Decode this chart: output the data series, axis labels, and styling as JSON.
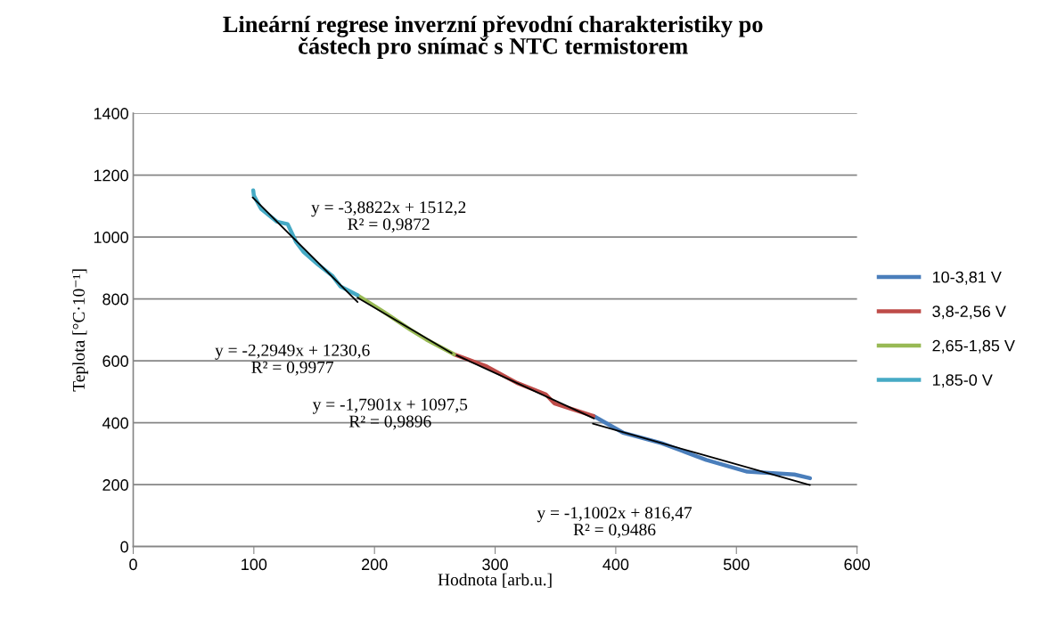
{
  "chart_data": {
    "type": "line",
    "title": "Lineární regrese inverzní převodní charakteristiky po částech pro snímač s NTC termistorem",
    "xlabel": "Hodnota [arb.u.]",
    "ylabel": "Teplota [°C·10⁻¹]",
    "series": [
      {
        "name": "10-3,81 V",
        "color": "#4a7ebb",
        "x": [
          381.5,
          406,
          438,
          475,
          509,
          548,
          561
        ],
        "values": [
          422,
          368,
          334,
          280,
          242,
          233,
          221
        ]
      },
      {
        "name": "3,8-2,56 V",
        "color": "#be4b48",
        "x": [
          266,
          293,
          318,
          342,
          349,
          381.5
        ],
        "values": [
          621,
          582,
          529,
          492,
          463,
          422
        ]
      },
      {
        "name": "2,65-1,85 V",
        "color": "#98b954",
        "x": [
          186,
          207,
          230,
          243,
          266
        ],
        "values": [
          812,
          760,
          700,
          669,
          621
        ]
      },
      {
        "name": "1,85-0 V",
        "color": "#46aac5",
        "x": [
          99.5,
          100,
          106,
          119,
          128,
          135,
          141,
          153,
          165,
          172,
          186
        ],
        "values": [
          1151,
          1134,
          1091,
          1050,
          1042,
          984,
          953,
          912,
          875,
          840,
          812
        ]
      },
      {
        "type": "line",
        "color": "#000000",
        "x": [
          99,
          186
        ],
        "values": [
          1128,
          790
        ]
      },
      {
        "type": "line",
        "color": "#000000",
        "x": [
          186,
          264
        ],
        "values": [
          804,
          625
        ]
      },
      {
        "type": "line",
        "color": "#000000",
        "x": [
          268,
          382
        ],
        "values": [
          618,
          414
        ]
      },
      {
        "type": "line",
        "color": "#000000",
        "x": [
          381,
          561
        ],
        "values": [
          397,
          199
        ]
      }
    ],
    "annotations": [
      "y = -3,8822x + 1512,2\nR² = 0,9872",
      "y = -2,2949x + 1230,6\nR² = 0,9977",
      "y = -1,7901x + 1097,5\nR² = 0,9896",
      "y = -1,1002x + 816,47\nR² = 0,9486"
    ],
    "xlim": [
      0,
      600
    ],
    "xticks": [
      0,
      100,
      200,
      300,
      400,
      500,
      600
    ],
    "ylim": [
      0,
      1400
    ],
    "yticks": [
      0,
      200,
      400,
      600,
      800,
      1000,
      1200,
      1400
    ],
    "grid": "y",
    "legend": "right",
    "marker": "none",
    "line_style": "solid"
  }
}
